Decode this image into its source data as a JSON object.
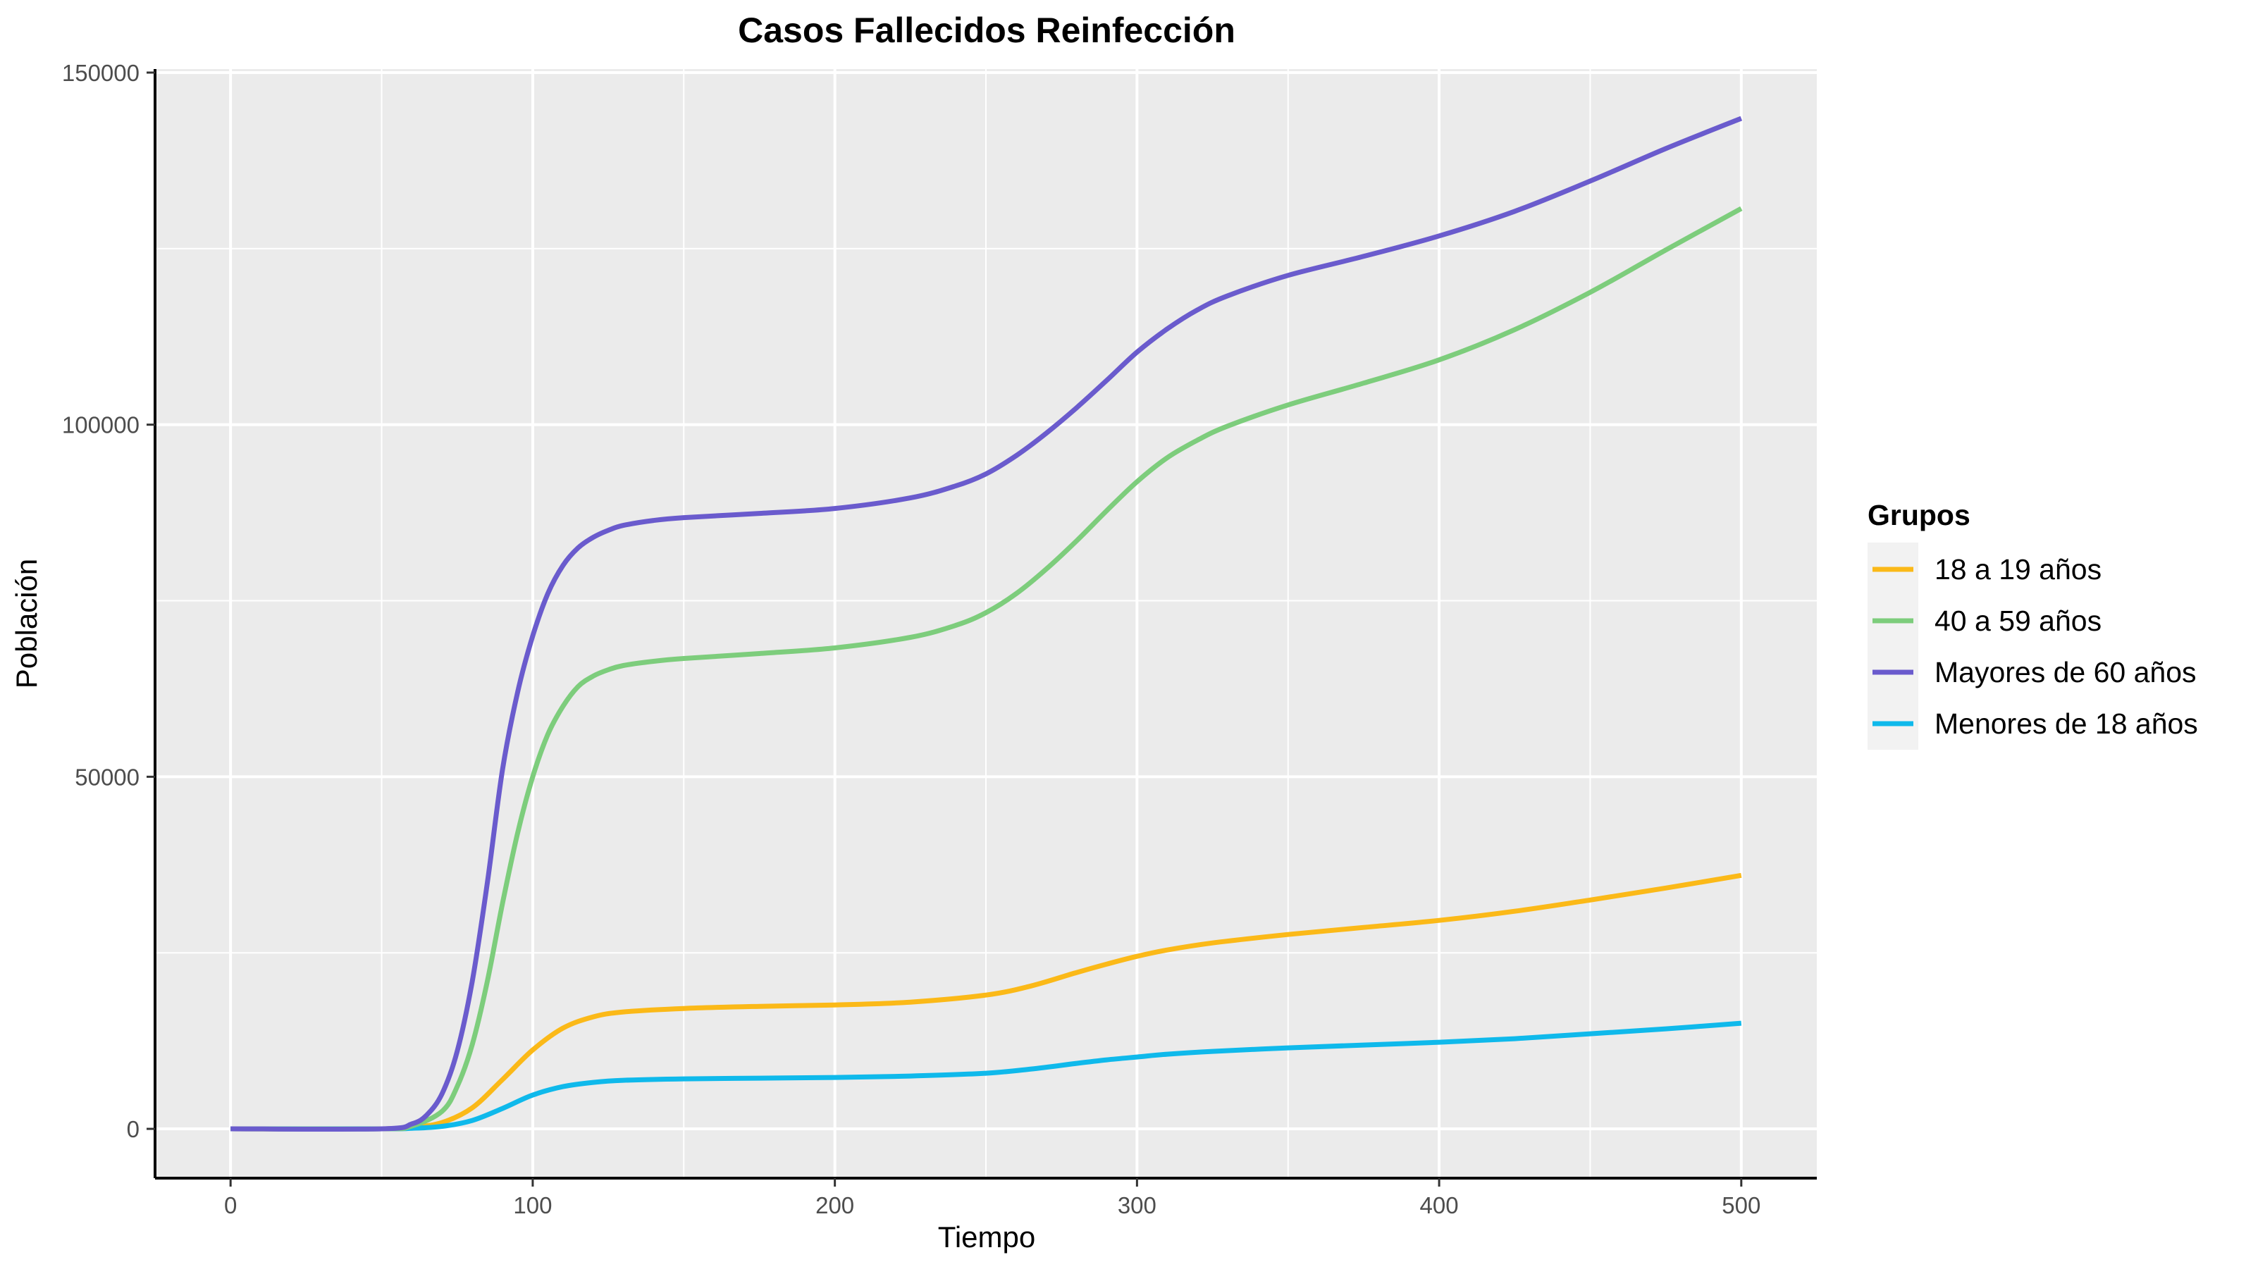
{
  "chart_data": {
    "type": "line",
    "title": "Casos Fallecidos Reinfección",
    "xlabel": "Tiempo",
    "ylabel": "Población",
    "xlim": [
      -25,
      525
    ],
    "ylim": [
      -7000,
      150500
    ],
    "x_ticks": [
      0,
      100,
      200,
      300,
      400,
      500
    ],
    "y_ticks": [
      0,
      50000,
      100000,
      150000
    ],
    "x_tick_labels": [
      "0",
      "100",
      "200",
      "300",
      "400",
      "500"
    ],
    "y_tick_labels": [
      "0",
      "50000",
      "100000",
      "150000"
    ],
    "grid": true,
    "legend_position": "right",
    "legend_title": "Grupos",
    "series": [
      {
        "name": "18 a 19 años",
        "color": "#FBB918",
        "x": [
          0,
          50,
          60,
          70,
          80,
          90,
          100,
          110,
          120,
          130,
          150,
          175,
          200,
          225,
          250,
          265,
          280,
          290,
          300,
          310,
          325,
          350,
          375,
          400,
          425,
          450,
          475,
          500
        ],
        "y": [
          0,
          0,
          200,
          900,
          3000,
          7000,
          11200,
          14300,
          15900,
          16600,
          17100,
          17400,
          17600,
          18000,
          19000,
          20300,
          22200,
          23400,
          24500,
          25400,
          26400,
          27600,
          28600,
          29600,
          30900,
          32500,
          34200,
          36000
        ]
      },
      {
        "name": "40 a 59 años",
        "color": "#7DCD7C",
        "x": [
          0,
          50,
          60,
          70,
          75,
          80,
          85,
          90,
          95,
          100,
          105,
          110,
          115,
          120,
          125,
          130,
          140,
          150,
          175,
          200,
          225,
          240,
          250,
          260,
          270,
          280,
          290,
          300,
          310,
          320,
          330,
          350,
          375,
          400,
          425,
          450,
          475,
          500
        ],
        "y": [
          0,
          0,
          400,
          2500,
          6000,
          12000,
          21000,
          32000,
          42000,
          50000,
          56000,
          60000,
          62800,
          64300,
          65200,
          65800,
          66400,
          66800,
          67500,
          68300,
          69800,
          71500,
          73300,
          76000,
          79500,
          83500,
          87800,
          91900,
          95300,
          97800,
          99800,
          102800,
          105900,
          109200,
          113500,
          118800,
          124800,
          130700
        ]
      },
      {
        "name": "Mayores de 60 años",
        "color": "#6A5BCD",
        "x": [
          0,
          50,
          60,
          65,
          70,
          75,
          80,
          85,
          90,
          95,
          100,
          105,
          110,
          115,
          120,
          125,
          130,
          140,
          150,
          175,
          200,
          225,
          240,
          250,
          260,
          270,
          280,
          290,
          300,
          310,
          320,
          330,
          350,
          375,
          400,
          425,
          450,
          475,
          500
        ],
        "y": [
          0,
          0,
          700,
          2000,
          5000,
          11000,
          21000,
          35000,
          51000,
          62000,
          70000,
          76000,
          80000,
          82500,
          84000,
          85000,
          85700,
          86400,
          86800,
          87400,
          88100,
          89600,
          91300,
          93000,
          95600,
          98800,
          102400,
          106300,
          110300,
          113600,
          116300,
          118300,
          121200,
          123900,
          126800,
          130300,
          134600,
          139200,
          143500
        ]
      },
      {
        "name": "Menores de 18 años",
        "color": "#0FB9EB",
        "x": [
          0,
          50,
          60,
          70,
          80,
          90,
          100,
          110,
          120,
          130,
          150,
          175,
          200,
          225,
          250,
          265,
          280,
          290,
          300,
          310,
          325,
          350,
          375,
          400,
          425,
          450,
          475,
          500
        ],
        "y": [
          0,
          0,
          80,
          350,
          1200,
          2900,
          4800,
          6000,
          6600,
          6900,
          7100,
          7200,
          7300,
          7500,
          7900,
          8500,
          9300,
          9800,
          10200,
          10600,
          11000,
          11500,
          11900,
          12300,
          12800,
          13500,
          14200,
          15000
        ]
      }
    ]
  }
}
